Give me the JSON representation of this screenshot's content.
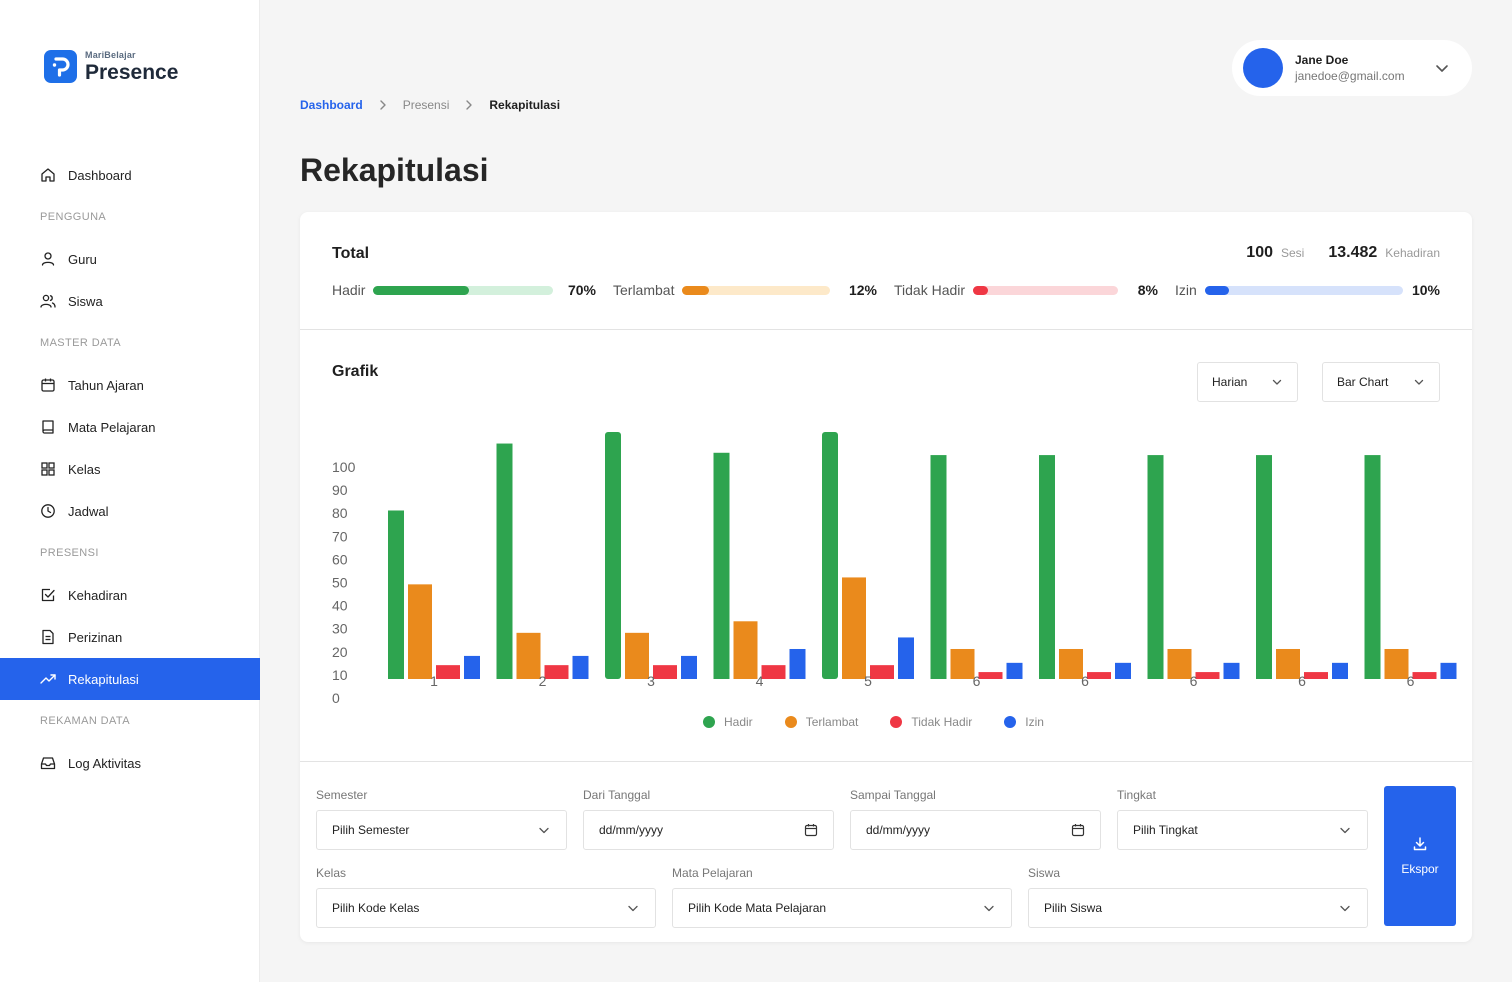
{
  "brand": {
    "sub": "MariBelajar",
    "main": "Presence",
    "color": "#1e6fe8"
  },
  "sidebar": {
    "items": [
      {
        "type": "item",
        "label": "Dashboard",
        "icon": "home-icon",
        "name": "sidebar-item-dashboard"
      },
      {
        "type": "section",
        "label": "PENGGUNA"
      },
      {
        "type": "item",
        "label": "Guru",
        "icon": "user-icon",
        "name": "sidebar-item-guru"
      },
      {
        "type": "item",
        "label": "Siswa",
        "icon": "users-icon",
        "name": "sidebar-item-siswa"
      },
      {
        "type": "section",
        "label": "MASTER DATA"
      },
      {
        "type": "item",
        "label": "Tahun Ajaran",
        "icon": "calendar-icon",
        "name": "sidebar-item-tahun-ajaran"
      },
      {
        "type": "item",
        "label": "Mata Pelajaran",
        "icon": "book-icon",
        "name": "sidebar-item-mata-pelajaran"
      },
      {
        "type": "item",
        "label": "Kelas",
        "icon": "grid-icon",
        "name": "sidebar-item-kelas"
      },
      {
        "type": "item",
        "label": "Jadwal",
        "icon": "clock-icon",
        "name": "sidebar-item-jadwal"
      },
      {
        "type": "section",
        "label": "PRESENSI"
      },
      {
        "type": "item",
        "label": "Kehadiran",
        "icon": "checkbox-icon",
        "name": "sidebar-item-kehadiran"
      },
      {
        "type": "item",
        "label": "Perizinan",
        "icon": "document-icon",
        "name": "sidebar-item-perizinan"
      },
      {
        "type": "item",
        "label": "Rekapitulasi",
        "icon": "trending-up-icon",
        "name": "sidebar-item-rekapitulasi",
        "active": true
      },
      {
        "type": "section",
        "label": "REKAMAN DATA"
      },
      {
        "type": "item",
        "label": "Log Aktivitas",
        "icon": "inbox-icon",
        "name": "sidebar-item-log-aktivitas"
      }
    ]
  },
  "user": {
    "name": "Jane Doe",
    "email": "janedoe@gmail.com"
  },
  "breadcrumb": {
    "items": [
      "Dashboard",
      "Presensi",
      "Rekapitulasi"
    ]
  },
  "page": {
    "title": "Rekapitulasi"
  },
  "total": {
    "title": "Total",
    "sesi_value": "100",
    "sesi_label": "Sesi",
    "kehadiran_value": "13.482",
    "kehadiran_label": "Kehadiran",
    "metrics": [
      {
        "label": "Hadir",
        "percent_text": "70%",
        "fill": 0.53,
        "color": "#2ea44f",
        "track": "#d3f0dc"
      },
      {
        "label": "Terlambat",
        "percent_text": "12%",
        "fill": 0.18,
        "color": "#ea8a1c",
        "track": "#fde9c9"
      },
      {
        "label": "Tidak Hadir",
        "percent_text": "8%",
        "fill": 0.1,
        "color": "#ef3744",
        "track": "#fbd6d9"
      },
      {
        "label": "Izin",
        "percent_text": "10%",
        "fill": 0.12,
        "color": "#2563eb",
        "track": "#d6e2fb"
      }
    ]
  },
  "grafik": {
    "title": "Grafik",
    "period_select": "Harian",
    "type_select": "Bar Chart"
  },
  "chart_data": {
    "type": "bar",
    "categories": [
      "1",
      "2",
      "3",
      "4",
      "5",
      "6",
      "6",
      "6",
      "6",
      "6"
    ],
    "series": [
      {
        "name": "Hadir",
        "color": "#2ea44f",
        "values": [
          73,
          102,
          107,
          98,
          107,
          97,
          97,
          97,
          97,
          97
        ]
      },
      {
        "name": "Terlambat",
        "color": "#ea8a1c",
        "values": [
          41,
          20,
          20,
          25,
          44,
          13,
          13,
          13,
          13,
          13
        ]
      },
      {
        "name": "Tidak Hadir",
        "color": "#ef3744",
        "values": [
          6,
          6,
          6,
          6,
          6,
          3,
          3,
          3,
          3,
          3
        ]
      },
      {
        "name": "Izin",
        "color": "#2563eb",
        "values": [
          10,
          10,
          10,
          13,
          18,
          7,
          7,
          7,
          7,
          7
        ]
      }
    ],
    "yticks": [
      "100",
      "90",
      "80",
      "70",
      "60",
      "50",
      "40",
      "30",
      "20",
      "10",
      "0"
    ],
    "ylim": [
      0,
      107
    ],
    "grid": false,
    "legend": "bottom-center"
  },
  "filters": {
    "semester": {
      "label": "Semester",
      "value": "Pilih Semester"
    },
    "dari": {
      "label": "Dari Tanggal",
      "value": "dd/mm/yyyy"
    },
    "sampai": {
      "label": "Sampai Tanggal",
      "value": "dd/mm/yyyy"
    },
    "tingkat": {
      "label": "Tingkat",
      "value": "Pilih Tingkat"
    },
    "kelas": {
      "label": "Kelas",
      "value": "Pilih Kode Kelas"
    },
    "mapel": {
      "label": "Mata Pelajaran",
      "value": "Pilih Kode Mata Pelajaran"
    },
    "siswa": {
      "label": "Siswa",
      "value": "Pilih Siswa"
    }
  },
  "export": {
    "label": "Ekspor"
  }
}
